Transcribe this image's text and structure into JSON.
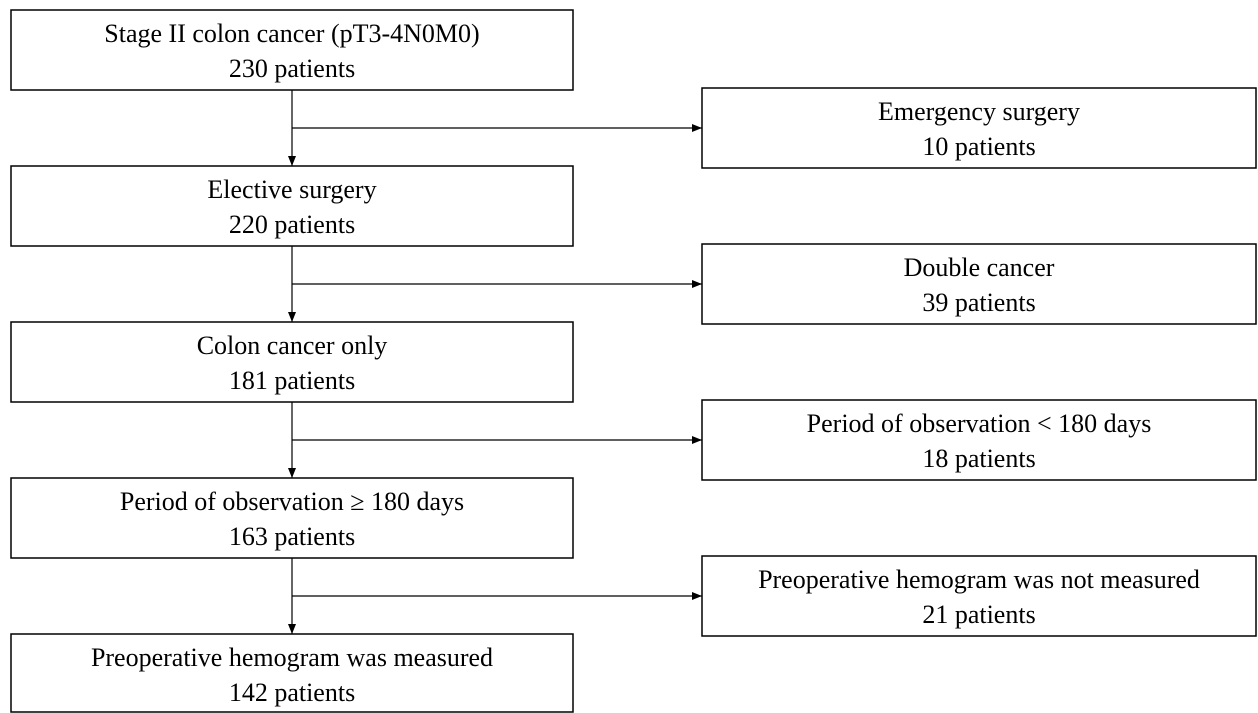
{
  "main": [
    {
      "lines": [
        "Stage II colon cancer (pT3-4N0M0)",
        "230 patients"
      ]
    },
    {
      "lines": [
        "Elective surgery",
        "220 patients"
      ]
    },
    {
      "lines": [
        "Colon cancer only",
        "181 patients"
      ]
    },
    {
      "lines": [
        "Period of observation ≥ 180 days",
        "163 patients"
      ]
    },
    {
      "lines": [
        "Preoperative hemogram was measured",
        "142 patients"
      ]
    }
  ],
  "excluded": [
    {
      "lines": [
        "Emergency surgery",
        "10 patients"
      ]
    },
    {
      "lines": [
        "Double cancer",
        "39 patients"
      ]
    },
    {
      "lines": [
        "Period of observation < 180 days",
        "18 patients"
      ]
    },
    {
      "lines": [
        "Preoperative hemogram was not measured",
        "21 patients"
      ]
    }
  ]
}
